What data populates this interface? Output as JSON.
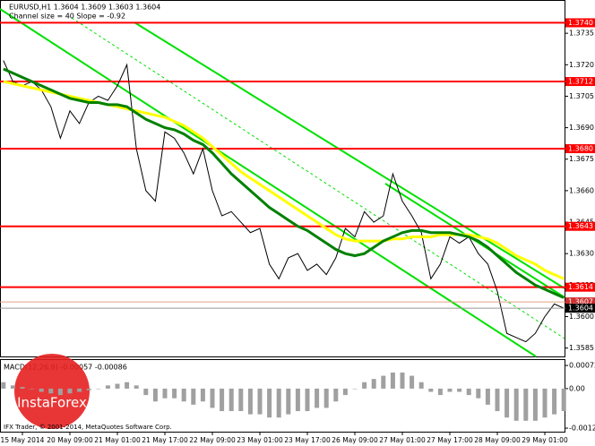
{
  "chart_data": [
    {
      "type": "line",
      "title": "EURUSD,H1  1.3604 1.3609 1.3603 1.3604",
      "subtitle": "Channel size = 40 Slope = -0.92",
      "categories": [
        null,
        null,
        "15 May 2014",
        null,
        null,
        null,
        null,
        "20 May 09:00",
        null,
        null,
        null,
        null,
        "21 May 01:00",
        null,
        null,
        null,
        null,
        "21 May 17:00",
        null,
        null,
        null,
        null,
        "22 May 09:00",
        null,
        null,
        null,
        null,
        "23 May 01:00",
        null,
        null,
        null,
        null,
        "23 May 17:00",
        null,
        null,
        null,
        null,
        "26 May 09:00",
        null,
        null,
        null,
        null,
        "27 May 01:00",
        null,
        null,
        null,
        null,
        "27 May 17:00",
        null,
        null,
        null,
        null,
        "28 May 09:00",
        null,
        null,
        null,
        null,
        "29 May 01:00",
        null,
        null
      ],
      "series": [
        {
          "color": "#000000",
          "values": [
            1.3722,
            1.3712,
            1.371,
            1.3712,
            1.3708,
            1.37,
            1.3685,
            1.3698,
            1.3692,
            1.3702,
            1.3705,
            1.3703,
            1.371,
            1.372,
            1.368,
            1.366,
            1.3655,
            1.3688,
            1.3685,
            1.3678,
            1.3668,
            1.368,
            1.366,
            1.3648,
            1.365,
            1.3645,
            1.364,
            1.3642,
            1.3625,
            1.3618,
            1.3628,
            1.363,
            1.3622,
            1.3625,
            1.362,
            1.3628,
            1.3642,
            1.3638,
            1.365,
            1.3645,
            1.3648,
            1.3668,
            1.3655,
            1.3648,
            1.364,
            1.3618,
            1.3625,
            1.3638,
            1.3635,
            1.3638,
            1.363,
            1.3625,
            1.3612,
            1.3592,
            1.359,
            1.3588,
            1.3592,
            1.36,
            1.3606,
            1.3604
          ]
        },
        {
          "color": "#ffff00",
          "values": [
            1.3712,
            1.3711,
            1.371,
            1.3709,
            1.3708,
            1.3707,
            1.3706,
            1.3705,
            1.3704,
            1.3703,
            1.3702,
            1.3701,
            1.37,
            1.3699,
            1.3698,
            1.3697,
            1.3696,
            1.3695,
            1.3693,
            1.3691,
            1.3688,
            1.3685,
            1.3681,
            1.3677,
            1.3673,
            1.3669,
            1.3666,
            1.3663,
            1.366,
            1.3657,
            1.3654,
            1.3651,
            1.3648,
            1.3645,
            1.3642,
            1.3639,
            1.3637,
            1.3636,
            1.3636,
            1.3636,
            1.3636,
            1.3637,
            1.3637,
            1.3638,
            1.3638,
            1.3638,
            1.3639,
            1.3639,
            1.3639,
            1.3639,
            1.3638,
            1.3637,
            1.3635,
            1.3632,
            1.3629,
            1.3627,
            1.3625,
            1.3622,
            1.362,
            1.3618
          ]
        },
        {
          "color": "#008000",
          "values": [
            1.3718,
            1.3716,
            1.3714,
            1.3712,
            1.371,
            1.3708,
            1.3706,
            1.3704,
            1.3703,
            1.3702,
            1.3702,
            1.3701,
            1.3701,
            1.37,
            1.3697,
            1.3694,
            1.3692,
            1.369,
            1.3689,
            1.3687,
            1.3684,
            1.3682,
            1.3678,
            1.3673,
            1.3668,
            1.3664,
            1.366,
            1.3656,
            1.3652,
            1.3649,
            1.3646,
            1.3643,
            1.3641,
            1.3638,
            1.3635,
            1.3632,
            1.363,
            1.3629,
            1.363,
            1.3633,
            1.3636,
            1.3638,
            1.364,
            1.3641,
            1.3641,
            1.364,
            1.364,
            1.364,
            1.3639,
            1.3638,
            1.3636,
            1.3633,
            1.3629,
            1.3625,
            1.3621,
            1.3618,
            1.3615,
            1.3613,
            1.3611,
            1.3609
          ]
        }
      ],
      "ylim": [
        1.3581,
        1.375
      ],
      "yticks": [
        1.3735,
        {
          "value": 1.372,
          "label": "1.3720"
        },
        1.3705,
        {
          "value": 1.369,
          "label": "1.3690"
        },
        1.3675,
        {
          "value": 1.366,
          "label": "1.3660"
        },
        1.3645,
        {
          "value": 1.363,
          "label": "1.3630"
        },
        1.3615,
        {
          "value": 1.36,
          "label": "1.3600"
        },
        1.3585
      ],
      "levels": [
        {
          "value": 1.374,
          "label": "1.3740"
        },
        {
          "value": 1.3712,
          "label": "1.3712"
        },
        {
          "value": 1.368,
          "label": "1.3680"
        },
        1.3643,
        1.3614
      ],
      "level_color": "#ff0000",
      "price_marks": [
        1.3607,
        1.3604
      ]
    },
    {
      "type": "bar",
      "title": "MACD(12,26,9) -0.00057 -0.00086",
      "color": "#a0a0a0",
      "values": [
        0.0002,
        0.0001,
        5e-05,
        0,
        -0.0001,
        -0.00015,
        -0.0002,
        -0.00015,
        -0.0001,
        -5e-05,
        0,
        0.0001,
        0.00015,
        0.0002,
        0.0001,
        -0.0002,
        -0.0004,
        -0.0003,
        -0.0003,
        -0.0004,
        -0.0005,
        -0.0004,
        -0.0006,
        -0.0007,
        -0.0007,
        -0.0007,
        -0.0008,
        -0.0008,
        -0.0009,
        -0.0009,
        -0.0008,
        -0.0007,
        -0.0007,
        -0.0006,
        -0.0006,
        -0.0004,
        -0.0002,
        0,
        0.0002,
        0.0003,
        0.0004,
        0.0005,
        0.0005,
        0.0004,
        0.0002,
        -0.0001,
        -0.0002,
        -0.0001,
        -0.0001,
        -0.0002,
        -0.0003,
        -0.0005,
        -0.0007,
        -0.0009,
        -0.001,
        -0.001,
        -0.001,
        -0.0009,
        -0.0008,
        -0.0007
      ],
      "ylim": [
        -0.00134,
        0.00089
      ],
      "yticks": [
        0.00072,
        {
          "value": 0,
          "label": "0.00"
        },
        -0.00123
      ]
    }
  ],
  "logo": "InstaForex",
  "copyright": "IFX Trader, © 2001-2014, MetaQuotes Software Corp."
}
